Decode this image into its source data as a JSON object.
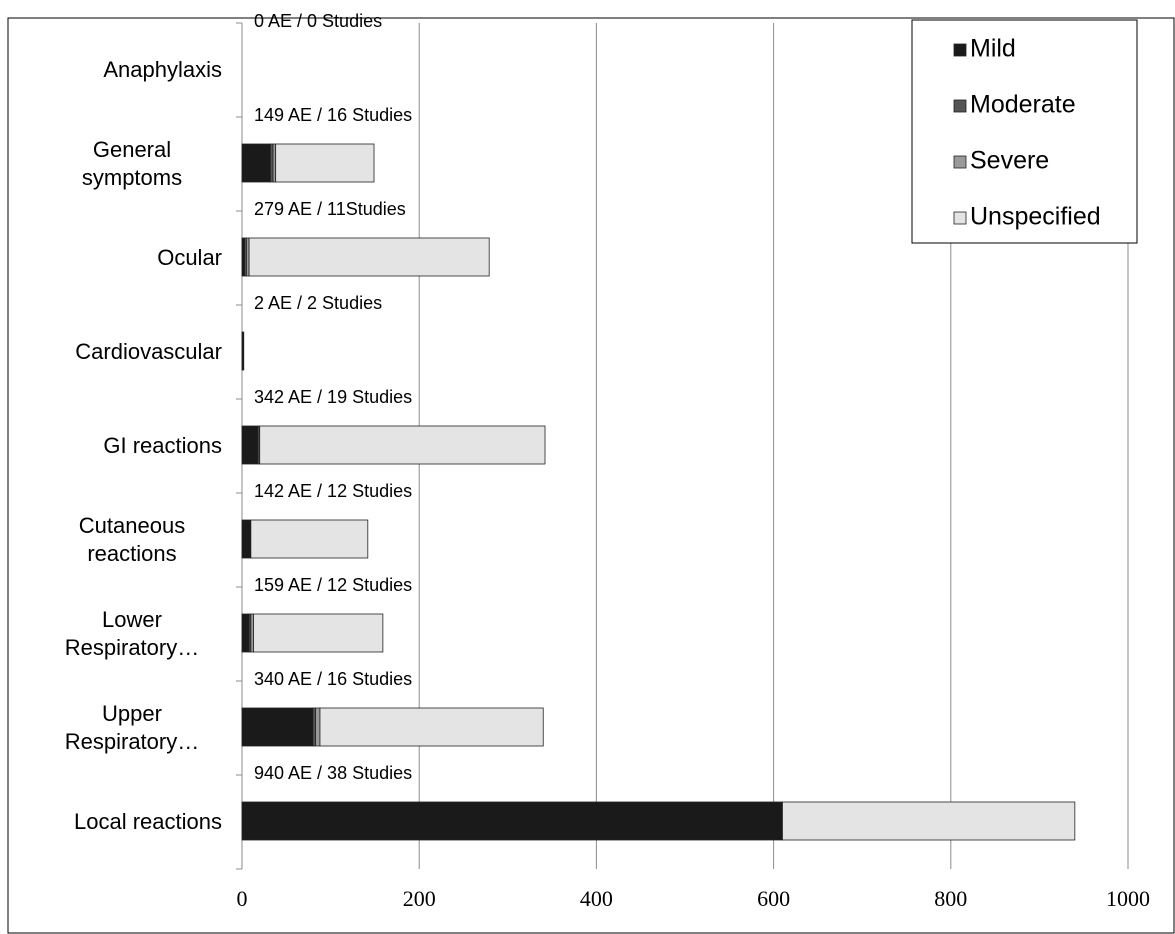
{
  "chart_data": {
    "type": "stacked-bar-horizontal",
    "categories": [
      "Anaphylaxis",
      "General symptoms",
      "Ocular",
      "Cardiovascular",
      "GI reactions",
      "Cutaneous reactions",
      "Lower Respiratory…",
      "Upper Respiratory…",
      "Local reactions"
    ],
    "annotations": [
      "0 AE / 0 Studies",
      "149 AE / 16 Studies",
      "279 AE / 11Studies",
      "2 AE / 2 Studies",
      "342 AE / 19 Studies",
      "142 AE / 12 Studies",
      "159 AE / 12 Studies",
      "340 AE / 16 Studies",
      "940 AE / 38 Studies"
    ],
    "series": [
      {
        "name": "Mild",
        "color": "#1a1a1a",
        "values": [
          0,
          32,
          3,
          2,
          18,
          10,
          8,
          80,
          610
        ]
      },
      {
        "name": "Moderate",
        "color": "#555555",
        "values": [
          0,
          3,
          2,
          0,
          2,
          0,
          2,
          3,
          0
        ]
      },
      {
        "name": "Severe",
        "color": "#9a9a9a",
        "values": [
          0,
          3,
          3,
          0,
          0,
          0,
          3,
          5,
          0
        ]
      },
      {
        "name": "Unspecified",
        "color": "#e4e4e4",
        "values": [
          0,
          111,
          271,
          0,
          322,
          132,
          146,
          252,
          330
        ]
      }
    ],
    "xlim": [
      0,
      1000
    ],
    "xticks": [
      0,
      200,
      400,
      600,
      800,
      1000
    ],
    "grid": true,
    "legend": "top-right"
  }
}
